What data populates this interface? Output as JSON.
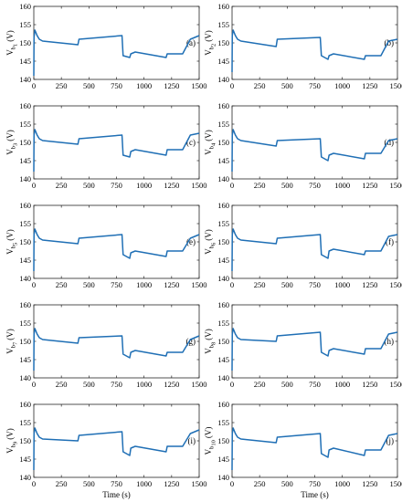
{
  "chart_data": {
    "type": "line",
    "line_color": "#1f6fb5",
    "xlim": [
      0,
      1500
    ],
    "ylim": [
      140,
      160
    ],
    "x_ticks": [
      "0",
      "250",
      "500",
      "750",
      "1000",
      "1250",
      "1500"
    ],
    "y_ticks": [
      "140",
      "145",
      "150",
      "155",
      "160"
    ],
    "grid": false,
    "xlabel": "Time (s)",
    "ylabel_prefix": "V",
    "ylabel_unit": "(V)",
    "panels": [
      {
        "label": "(a)",
        "ylabel_sub": "b",
        "ylabel_subsub": "1",
        "x": [
          0,
          2,
          10,
          30,
          50,
          80,
          400,
          410,
          800,
          810,
          870,
          880,
          920,
          1200,
          1210,
          1350,
          1420,
          1500
        ],
        "y": [
          141,
          151.5,
          153.5,
          152,
          151,
          150.5,
          149.5,
          151,
          152,
          146.5,
          146,
          147,
          147.5,
          146,
          147,
          147,
          151,
          152
        ]
      },
      {
        "label": "(b)",
        "ylabel_sub": "b",
        "ylabel_subsub": "2",
        "x": [
          0,
          2,
          10,
          30,
          50,
          80,
          400,
          410,
          800,
          810,
          870,
          880,
          920,
          1200,
          1210,
          1350,
          1420,
          1500
        ],
        "y": [
          142,
          152,
          153.5,
          152,
          151,
          150.5,
          149,
          151,
          151.5,
          146.5,
          145.5,
          146.5,
          147,
          145.5,
          146.5,
          146.5,
          150.5,
          151
        ]
      },
      {
        "label": "(c)",
        "ylabel_sub": "b",
        "ylabel_subsub": "3",
        "x": [
          0,
          2,
          10,
          30,
          50,
          80,
          400,
          410,
          800,
          810,
          870,
          880,
          920,
          1200,
          1210,
          1350,
          1420,
          1500
        ],
        "y": [
          142,
          152,
          153.5,
          152,
          151,
          150.5,
          149.5,
          151,
          152,
          146.5,
          146,
          147.5,
          148,
          146.5,
          148,
          148,
          152,
          152.5
        ]
      },
      {
        "label": "(d)",
        "ylabel_sub": "b",
        "ylabel_subsub": "4",
        "x": [
          0,
          2,
          10,
          30,
          50,
          80,
          400,
          410,
          800,
          810,
          870,
          880,
          920,
          1200,
          1210,
          1350,
          1420,
          1500
        ],
        "y": [
          142,
          152,
          153.5,
          152,
          151,
          150.5,
          149,
          150.5,
          151,
          146,
          145,
          146.5,
          147,
          145.5,
          147,
          147,
          150.5,
          151
        ]
      },
      {
        "label": "(e)",
        "ylabel_sub": "b",
        "ylabel_subsub": "5",
        "x": [
          0,
          2,
          10,
          30,
          50,
          80,
          400,
          410,
          800,
          810,
          870,
          880,
          920,
          1200,
          1210,
          1350,
          1420,
          1500
        ],
        "y": [
          142,
          152,
          153.5,
          152,
          151,
          150.5,
          149.5,
          151,
          152,
          146.5,
          145.5,
          147,
          147.5,
          146,
          147.5,
          147.5,
          151,
          152
        ]
      },
      {
        "label": "(f)",
        "ylabel_sub": "b",
        "ylabel_subsub": "6",
        "x": [
          0,
          2,
          10,
          30,
          50,
          80,
          400,
          410,
          800,
          810,
          870,
          880,
          920,
          1200,
          1210,
          1350,
          1420,
          1500
        ],
        "y": [
          142,
          152,
          153.5,
          152,
          151,
          150.5,
          149.5,
          151,
          152,
          146.5,
          145.5,
          147.5,
          148,
          146.5,
          147.5,
          147.5,
          151.5,
          152
        ]
      },
      {
        "label": "(g)",
        "ylabel_sub": "b",
        "ylabel_subsub": "7",
        "x": [
          0,
          2,
          10,
          30,
          50,
          80,
          400,
          410,
          800,
          810,
          870,
          880,
          920,
          1200,
          1210,
          1350,
          1420,
          1500
        ],
        "y": [
          142,
          152,
          153.5,
          152,
          151,
          150.5,
          149.5,
          151,
          151.5,
          146.5,
          145.5,
          147,
          147.5,
          146,
          147,
          147,
          150.5,
          151.5
        ]
      },
      {
        "label": "(h)",
        "ylabel_sub": "b",
        "ylabel_subsub": "8",
        "x": [
          0,
          2,
          10,
          30,
          50,
          80,
          400,
          410,
          800,
          810,
          870,
          880,
          920,
          1200,
          1210,
          1350,
          1420,
          1500
        ],
        "y": [
          142,
          152,
          153.5,
          152,
          151,
          150.5,
          150,
          151.5,
          152.5,
          147,
          146,
          147.5,
          148,
          146.5,
          148,
          148,
          152,
          152.5
        ]
      },
      {
        "label": "(i)",
        "ylabel_sub": "b",
        "ylabel_subsub": "9",
        "x": [
          0,
          2,
          10,
          30,
          50,
          80,
          400,
          410,
          800,
          810,
          870,
          880,
          920,
          1200,
          1210,
          1350,
          1420,
          1500
        ],
        "y": [
          142,
          152,
          153.5,
          152,
          151,
          150.5,
          150,
          151.5,
          152.5,
          147,
          146,
          148,
          148.5,
          147,
          148.5,
          148.5,
          152,
          153
        ]
      },
      {
        "label": "(j)",
        "ylabel_sub": "b",
        "ylabel_subsub": "10",
        "x": [
          0,
          2,
          10,
          30,
          50,
          80,
          400,
          410,
          800,
          810,
          870,
          880,
          920,
          1200,
          1210,
          1350,
          1420,
          1500
        ],
        "y": [
          142,
          152,
          153.5,
          152,
          151,
          150.5,
          149.5,
          151,
          152,
          146.5,
          145.5,
          147.5,
          148,
          146,
          147.5,
          147.5,
          151.5,
          152
        ]
      }
    ]
  }
}
